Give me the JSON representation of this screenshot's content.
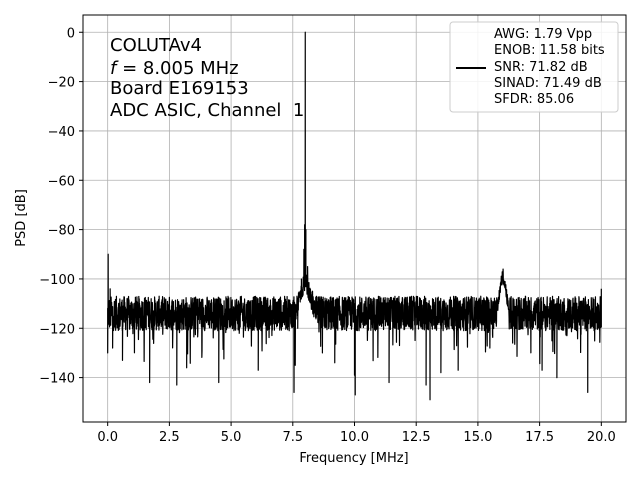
{
  "chart_data": {
    "type": "line",
    "title": "",
    "xlabel": "Frequency [MHz]",
    "ylabel": "PSD [dB]",
    "xlim": [
      -1,
      21
    ],
    "ylim": [
      -158,
      7
    ],
    "xticks": [
      0,
      2.5,
      5,
      7.5,
      10,
      12.5,
      15,
      17.5,
      20
    ],
    "xtick_labels": [
      "0.0",
      "2.5",
      "5.0",
      "7.5",
      "10.0",
      "12.5",
      "15.0",
      "17.5",
      "20.0"
    ],
    "yticks": [
      0,
      -20,
      -40,
      -60,
      -80,
      -100,
      -120,
      -140
    ],
    "ytick_labels": [
      "0",
      "−20",
      "−40",
      "−60",
      "−80",
      "−100",
      "−120",
      "−140"
    ],
    "grid": true,
    "line_color": "#000000",
    "annotations": {
      "line1": "COLUTAv4",
      "line2_italic": "f",
      "line2_rest": " = 8.005 MHz",
      "line3": "Board E169153",
      "line4": "ADC ASIC, Channel  1"
    },
    "legend": {
      "position": "top-right",
      "entries": [
        "AWG: 1.79 Vpp",
        "ENOB: 11.58 bits",
        "SNR: 71.82 dB",
        "SINAD: 71.49 dB",
        "SFDR: 85.06"
      ]
    },
    "series": [
      {
        "noise_floor_db": -114,
        "noise_spread_db": 7,
        "x_start": 0.0,
        "x_end": 20.0,
        "points": [
          [
            0.0,
            -130
          ],
          [
            0.02,
            -90
          ],
          [
            0.05,
            -117
          ],
          [
            0.1,
            -104
          ],
          [
            0.2,
            -128
          ],
          [
            0.6,
            -133
          ],
          [
            1.7,
            -142
          ],
          [
            2.8,
            -143
          ],
          [
            3.2,
            -136
          ],
          [
            4.5,
            -142
          ],
          [
            6.1,
            -137
          ],
          [
            7.55,
            -146
          ],
          [
            7.6,
            -135
          ],
          [
            7.7,
            -120
          ],
          [
            7.85,
            -100
          ],
          [
            7.95,
            -88
          ],
          [
            7.98,
            -78
          ],
          [
            8.005,
            0
          ],
          [
            8.03,
            -80
          ],
          [
            8.1,
            -95
          ],
          [
            8.3,
            -105
          ],
          [
            8.7,
            -130
          ],
          [
            9.2,
            -134
          ],
          [
            10.0,
            -139
          ],
          [
            10.03,
            -147
          ],
          [
            11.4,
            -142
          ],
          [
            12.9,
            -143
          ],
          [
            13.06,
            -149
          ],
          [
            13.5,
            -138
          ],
          [
            14.2,
            -137
          ],
          [
            15.6,
            -118
          ],
          [
            15.95,
            -100
          ],
          [
            16.02,
            -96
          ],
          [
            16.1,
            -103
          ],
          [
            16.5,
            -118
          ],
          [
            17.6,
            -137
          ],
          [
            18.2,
            -140
          ],
          [
            19.45,
            -146
          ],
          [
            20.0,
            -104
          ]
        ]
      }
    ]
  }
}
